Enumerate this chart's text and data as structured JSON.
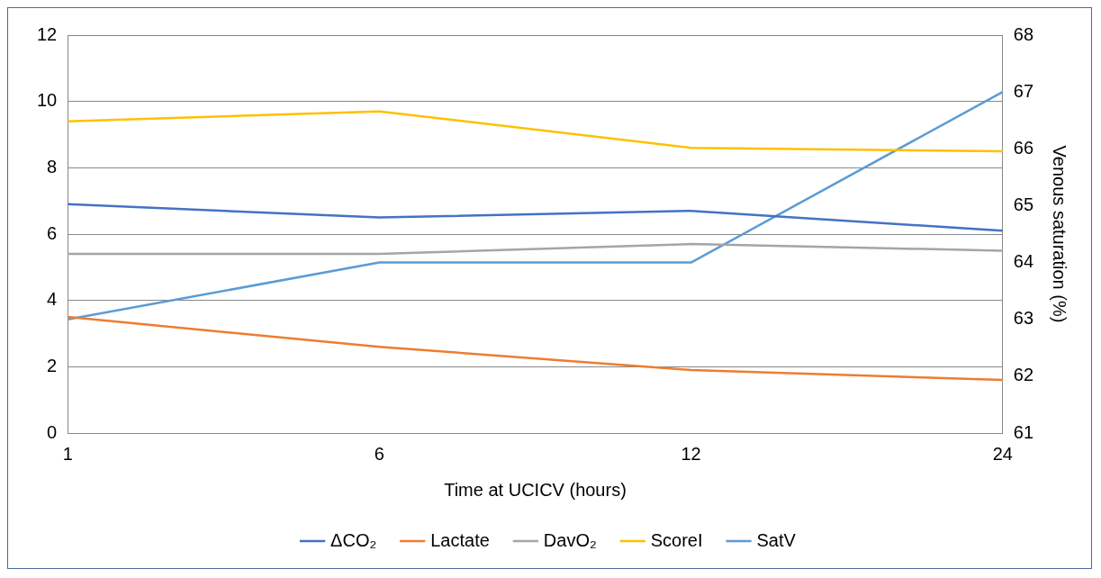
{
  "chart_data": {
    "type": "line",
    "xlabel": "Time at UCICV (hours)",
    "y2label": "Venous saturation (%)",
    "categories": [
      "1",
      "6",
      "12",
      "24"
    ],
    "series": [
      {
        "name": "ΔCO₂",
        "color": "#4472c4",
        "values": [
          6.9,
          6.5,
          6.7,
          6.1
        ]
      },
      {
        "name": "Lactate",
        "color": "#ed7d31",
        "values": [
          3.5,
          2.6,
          1.9,
          1.6
        ]
      },
      {
        "name": "DavO₂",
        "color": "#a5a5a5",
        "values": [
          5.4,
          5.4,
          5.7,
          5.5
        ]
      },
      {
        "name": "ScoreI",
        "color": "#ffc000",
        "values": [
          9.4,
          9.7,
          8.6,
          8.5
        ]
      },
      {
        "name": "SatV",
        "color": "#5b9bd5",
        "values": [
          63,
          64,
          64,
          67
        ],
        "axis": "y2"
      }
    ],
    "ylim": [
      0,
      12
    ],
    "yticks": [
      0,
      2,
      4,
      6,
      8,
      10,
      12
    ],
    "y2lim": [
      61,
      68
    ],
    "y2ticks": [
      61,
      62,
      63,
      64,
      65,
      66,
      67,
      68
    ],
    "grid": "y",
    "legend": "bottom",
    "marker": "none",
    "line_style": "solid"
  }
}
